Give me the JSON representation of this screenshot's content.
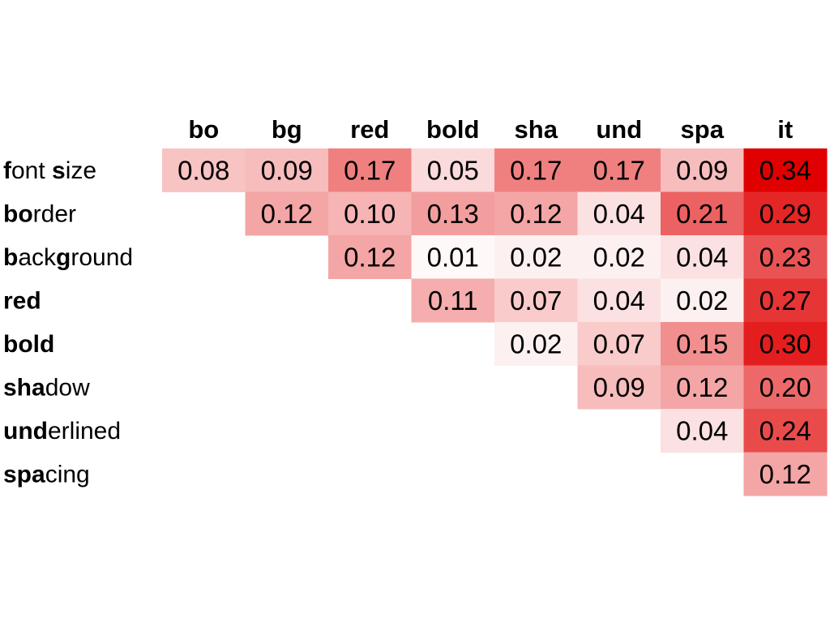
{
  "chart_data": {
    "type": "heatmap",
    "columns": [
      "bo",
      "bg",
      "red",
      "bold",
      "sha",
      "und",
      "spa",
      "it"
    ],
    "rows": [
      {
        "segments": [
          {
            "t": "f",
            "b": true
          },
          {
            "t": "ont ",
            "b": false
          },
          {
            "t": "s",
            "b": true
          },
          {
            "t": "ize",
            "b": false
          }
        ]
      },
      {
        "segments": [
          {
            "t": "bo",
            "b": true
          },
          {
            "t": "rder",
            "b": false
          }
        ]
      },
      {
        "segments": [
          {
            "t": "b",
            "b": true
          },
          {
            "t": "ack",
            "b": false
          },
          {
            "t": "g",
            "b": true
          },
          {
            "t": "round",
            "b": false
          }
        ]
      },
      {
        "segments": [
          {
            "t": "red",
            "b": true
          }
        ]
      },
      {
        "segments": [
          {
            "t": "bold",
            "b": true
          }
        ]
      },
      {
        "segments": [
          {
            "t": "sha",
            "b": true
          },
          {
            "t": "dow",
            "b": false
          }
        ]
      },
      {
        "segments": [
          {
            "t": "und",
            "b": true
          },
          {
            "t": "erlined",
            "b": false
          }
        ]
      },
      {
        "segments": [
          {
            "t": "spa",
            "b": true
          },
          {
            "t": "cing",
            "b": false
          }
        ]
      }
    ],
    "values": [
      [
        "0.08",
        "0.09",
        "0.17",
        "0.05",
        "0.17",
        "0.17",
        "0.09",
        "0.34"
      ],
      [
        null,
        "0.12",
        "0.10",
        "0.13",
        "0.12",
        "0.04",
        "0.21",
        "0.29"
      ],
      [
        null,
        null,
        "0.12",
        "0.01",
        "0.02",
        "0.02",
        "0.04",
        "0.23"
      ],
      [
        null,
        null,
        null,
        "0.11",
        "0.07",
        "0.04",
        "0.02",
        "0.27"
      ],
      [
        null,
        null,
        null,
        null,
        "0.02",
        "0.07",
        "0.15",
        "0.30"
      ],
      [
        null,
        null,
        null,
        null,
        null,
        "0.09",
        "0.12",
        "0.20"
      ],
      [
        null,
        null,
        null,
        null,
        null,
        null,
        "0.04",
        "0.24"
      ],
      [
        null,
        null,
        null,
        null,
        null,
        null,
        null,
        "0.12"
      ]
    ],
    "color_scale": {
      "low": "#ffffff",
      "high": "#e00000",
      "min": 0.0,
      "max": 0.34
    }
  }
}
